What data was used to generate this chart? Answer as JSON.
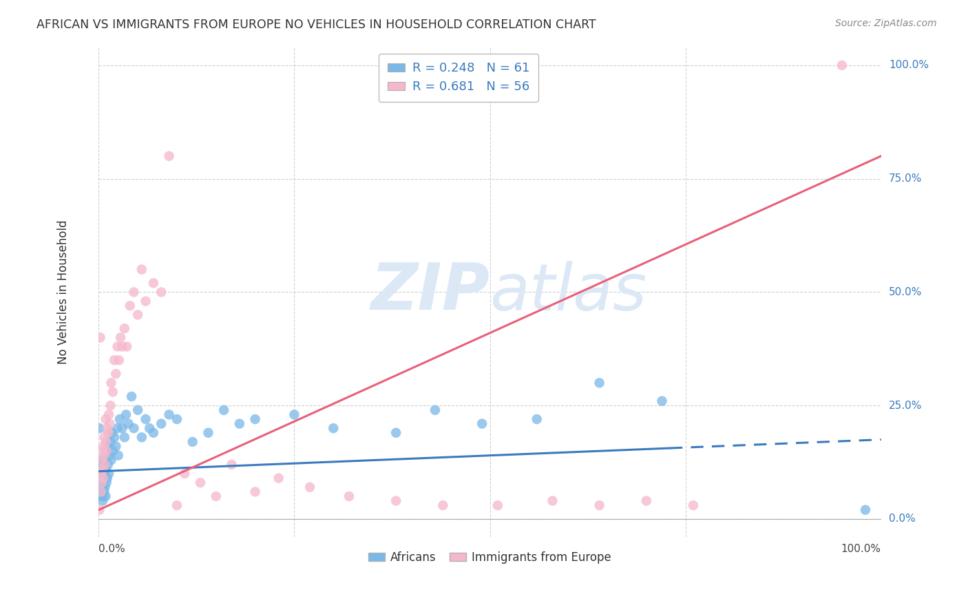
{
  "title": "AFRICAN VS IMMIGRANTS FROM EUROPE NO VEHICLES IN HOUSEHOLD CORRELATION CHART",
  "source": "Source: ZipAtlas.com",
  "ylabel": "No Vehicles in Household",
  "legend_africans_R": "0.248",
  "legend_africans_N": "61",
  "legend_europe_R": "0.681",
  "legend_europe_N": "56",
  "color_blue": "#7ab8e8",
  "color_pink": "#f5b8cb",
  "color_blue_line": "#3a7bbf",
  "color_pink_line": "#e8607a",
  "watermark_color": "#dce8f5",
  "africans_x": [
    0.001,
    0.002,
    0.003,
    0.003,
    0.004,
    0.004,
    0.005,
    0.005,
    0.005,
    0.006,
    0.006,
    0.007,
    0.007,
    0.008,
    0.008,
    0.009,
    0.009,
    0.01,
    0.01,
    0.011,
    0.012,
    0.012,
    0.013,
    0.014,
    0.015,
    0.016,
    0.017,
    0.018,
    0.02,
    0.022,
    0.024,
    0.025,
    0.027,
    0.03,
    0.033,
    0.035,
    0.038,
    0.042,
    0.045,
    0.05,
    0.055,
    0.06,
    0.065,
    0.07,
    0.08,
    0.09,
    0.1,
    0.12,
    0.14,
    0.16,
    0.18,
    0.2,
    0.25,
    0.3,
    0.38,
    0.43,
    0.49,
    0.56,
    0.64,
    0.72,
    0.98
  ],
  "africans_y": [
    0.2,
    0.08,
    0.05,
    0.1,
    0.06,
    0.13,
    0.04,
    0.07,
    0.12,
    0.05,
    0.09,
    0.06,
    0.1,
    0.07,
    0.13,
    0.05,
    0.11,
    0.08,
    0.15,
    0.09,
    0.12,
    0.16,
    0.1,
    0.14,
    0.17,
    0.13,
    0.19,
    0.15,
    0.18,
    0.16,
    0.2,
    0.14,
    0.22,
    0.2,
    0.18,
    0.23,
    0.21,
    0.27,
    0.2,
    0.24,
    0.18,
    0.22,
    0.2,
    0.19,
    0.21,
    0.23,
    0.22,
    0.17,
    0.19,
    0.24,
    0.21,
    0.22,
    0.23,
    0.2,
    0.19,
    0.24,
    0.21,
    0.22,
    0.3,
    0.26,
    0.02
  ],
  "europe_x": [
    0.001,
    0.002,
    0.003,
    0.003,
    0.004,
    0.004,
    0.005,
    0.005,
    0.006,
    0.006,
    0.007,
    0.007,
    0.008,
    0.009,
    0.009,
    0.01,
    0.011,
    0.012,
    0.013,
    0.014,
    0.015,
    0.016,
    0.018,
    0.02,
    0.022,
    0.024,
    0.026,
    0.028,
    0.03,
    0.033,
    0.036,
    0.04,
    0.045,
    0.05,
    0.055,
    0.06,
    0.07,
    0.08,
    0.09,
    0.1,
    0.11,
    0.13,
    0.15,
    0.17,
    0.2,
    0.23,
    0.27,
    0.32,
    0.38,
    0.44,
    0.51,
    0.58,
    0.64,
    0.7,
    0.76,
    0.95
  ],
  "europe_y": [
    0.02,
    0.4,
    0.06,
    0.1,
    0.08,
    0.13,
    0.11,
    0.15,
    0.09,
    0.16,
    0.14,
    0.18,
    0.12,
    0.17,
    0.22,
    0.15,
    0.2,
    0.19,
    0.23,
    0.21,
    0.25,
    0.3,
    0.28,
    0.35,
    0.32,
    0.38,
    0.35,
    0.4,
    0.38,
    0.42,
    0.38,
    0.47,
    0.5,
    0.45,
    0.55,
    0.48,
    0.52,
    0.5,
    0.8,
    0.03,
    0.1,
    0.08,
    0.05,
    0.12,
    0.06,
    0.09,
    0.07,
    0.05,
    0.04,
    0.03,
    0.03,
    0.04,
    0.03,
    0.04,
    0.03,
    1.0
  ],
  "xlim": [
    0.0,
    1.0
  ],
  "ylim": [
    -0.04,
    1.04
  ],
  "ytick_values": [
    0.0,
    0.25,
    0.5,
    0.75,
    1.0
  ],
  "ytick_labels": [
    "0.0%",
    "25.0%",
    "50.0%",
    "75.0%",
    "100.0%"
  ],
  "africa_slope": 0.07,
  "africa_intercept": 0.105,
  "europe_slope": 0.78,
  "europe_intercept": 0.02
}
